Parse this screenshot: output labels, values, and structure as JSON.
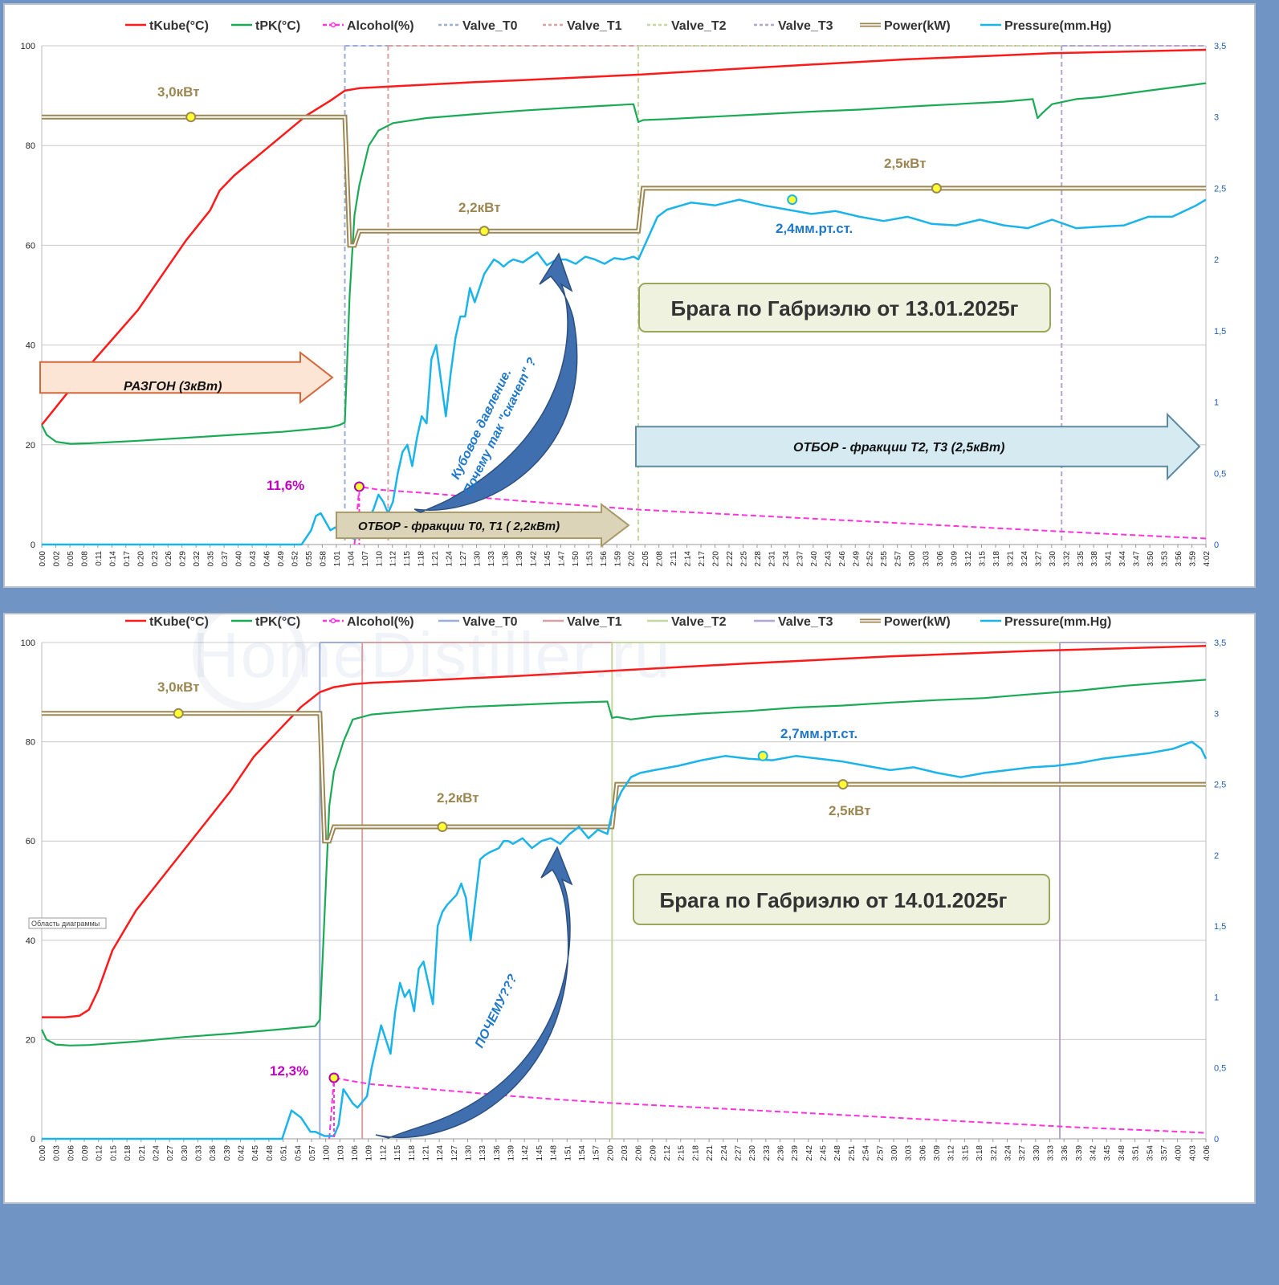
{
  "colors": {
    "tKube": "#ff1a1a",
    "tRK": "#1aaa55",
    "alcohol": "#ff33dd",
    "valve_t0": "#9aaed6",
    "valve_t1": "#d9a0a0",
    "valve_t2": "#c6d6a0",
    "valve_t3": "#b2a6d0",
    "power": "#9c8752",
    "pressure": "#1bb4ea",
    "arrow_blue": "#3f6fae",
    "note_border": "#9aa75a",
    "note_fill": "#eef2de"
  },
  "legend": [
    "tKube(°C)",
    "tPK(°C)",
    "Alcohol(%)",
    "Valve_T0",
    "Valve_T1",
    "Valve_T2",
    "Valve_T3",
    "Power(kW)",
    "Pressure(mm.Hg)"
  ],
  "chart_data": [
    {
      "type": "line",
      "title": "Брага по Габриэлю от 13.01.2025г",
      "ylim_left": [
        0,
        100
      ],
      "ylim_right": [
        0,
        3.5
      ],
      "yticks_left": [
        "0",
        "20",
        "40",
        "60",
        "80",
        "100"
      ],
      "yticks_right": [
        "0",
        "0,5",
        "1",
        "1,5",
        "2",
        "2,5",
        "3",
        "3,5"
      ],
      "x_ticks": [
        "0:00",
        "0:02",
        "0:05",
        "0:08",
        "0:11",
        "0:14",
        "0:17",
        "0:20",
        "0:23",
        "0:26",
        "0:29",
        "0:32",
        "0:35",
        "0:37",
        "0:40",
        "0:43",
        "0:46",
        "0:49",
        "0:52",
        "0:55",
        "0:58",
        "1:01",
        "1:04",
        "1:07",
        "1:10",
        "1:12",
        "1:15",
        "1:18",
        "1:21",
        "1:24",
        "1:27",
        "1:30",
        "1:33",
        "1:36",
        "1:39",
        "1:42",
        "1:45",
        "1:47",
        "1:50",
        "1:53",
        "1:56",
        "1:59",
        "2:02",
        "2:05",
        "2:08",
        "2:11",
        "2:14",
        "2:17",
        "2:20",
        "2:22",
        "2:25",
        "2:28",
        "2:31",
        "2:34",
        "2:37",
        "2:40",
        "2:43",
        "2:46",
        "2:49",
        "2:52",
        "2:55",
        "2:57",
        "3:00",
        "3:03",
        "3:06",
        "3:09",
        "3:12",
        "3:15",
        "3:18",
        "3:21",
        "3:24",
        "3:27",
        "3:30",
        "3:32",
        "3:35",
        "3:38",
        "3:41",
        "3:44",
        "3:47",
        "3:50",
        "3:53",
        "3:56",
        "3:59",
        "4:02"
      ],
      "x_max_min": 242,
      "valve_times_min": {
        "Valve_T0": 63,
        "Valve_T1": 72,
        "Valve_T2": 124,
        "Valve_T3": 212
      },
      "series": [
        {
          "name": "tKube(°C)",
          "axis": "left",
          "x": [
            0,
            5,
            10,
            20,
            30,
            35,
            37,
            40,
            50,
            55,
            60,
            63,
            66,
            70,
            80,
            90,
            100,
            124,
            150,
            180,
            210,
            242
          ],
          "y": [
            24,
            30,
            36,
            47,
            61,
            67,
            71,
            74,
            82,
            86,
            89,
            91,
            91.5,
            91.7,
            92.2,
            92.7,
            93.1,
            94.2,
            95.7,
            97.3,
            98.5,
            99.2
          ]
        },
        {
          "name": "tPK(°C)",
          "axis": "left",
          "x": [
            0,
            1,
            3,
            6,
            10,
            20,
            30,
            40,
            50,
            60,
            62,
            63,
            64,
            65,
            66,
            68,
            70,
            73,
            80,
            90,
            100,
            110,
            123,
            124,
            125,
            130,
            140,
            150,
            160,
            170,
            180,
            190,
            200,
            206,
            207,
            208,
            210,
            215,
            220,
            230,
            242
          ],
          "y": [
            24,
            22,
            20.6,
            20.2,
            20.3,
            20.8,
            21.4,
            22,
            22.6,
            23.5,
            24,
            24.5,
            50,
            66,
            72,
            80,
            83,
            84.5,
            85.5,
            86.3,
            87,
            87.6,
            88.3,
            84.7,
            85.1,
            85.3,
            85.8,
            86.3,
            86.8,
            87.2,
            87.8,
            88.3,
            88.8,
            89.3,
            85.5,
            86.5,
            88.3,
            89.3,
            89.7,
            91,
            92.5
          ]
        },
        {
          "name": "Alcohol(%)",
          "axis": "left",
          "x": [
            65,
            66,
            70,
            80,
            90,
            100,
            110,
            124,
            140,
            160,
            180,
            200,
            220,
            242
          ],
          "y": [
            0,
            11.6,
            11,
            10.3,
            9.5,
            8.7,
            8,
            7,
            6.2,
            5.2,
            4.2,
            3.2,
            2.2,
            1.2
          ]
        },
        {
          "name": "Power(kW)",
          "axis": "right",
          "x": [
            0,
            63,
            64,
            65,
            66,
            124,
            125,
            242
          ],
          "y": [
            3.0,
            3.0,
            2.1,
            2.1,
            2.2,
            2.2,
            2.5,
            2.5
          ]
        },
        {
          "name": "Pressure(mm.Hg)",
          "axis": "right",
          "x": [
            0,
            54,
            56,
            57,
            58,
            60,
            61,
            63,
            64,
            65,
            66,
            67,
            68,
            69,
            70,
            71,
            72,
            73,
            74,
            75,
            76,
            77,
            78,
            79,
            80,
            81,
            82,
            84,
            85,
            86,
            87,
            88,
            89,
            90,
            92,
            93,
            94,
            95,
            96,
            97,
            98,
            100,
            103,
            105,
            107,
            109,
            111,
            113,
            115,
            117,
            119,
            121,
            123,
            124,
            126,
            128,
            130,
            135,
            140,
            145,
            150,
            155,
            160,
            165,
            170,
            175,
            180,
            185,
            190,
            195,
            200,
            205,
            210,
            215,
            220,
            225,
            230,
            235,
            240,
            242
          ],
          "y": [
            0,
            0,
            0.1,
            0.2,
            0.22,
            0.1,
            0.12,
            0.08,
            0.05,
            0.04,
            0.05,
            0.12,
            0.18,
            0.25,
            0.35,
            0.3,
            0.22,
            0.3,
            0.5,
            0.65,
            0.7,
            0.55,
            0.75,
            0.9,
            0.85,
            1.3,
            1.4,
            0.9,
            1.2,
            1.45,
            1.6,
            1.6,
            1.8,
            1.7,
            1.9,
            1.95,
            2.0,
            1.98,
            1.95,
            1.98,
            2.0,
            1.98,
            2.05,
            1.96,
            2.0,
            2.0,
            1.97,
            2.02,
            2.0,
            1.97,
            2.01,
            2.0,
            2.02,
            2.0,
            2.15,
            2.3,
            2.35,
            2.4,
            2.38,
            2.42,
            2.38,
            2.35,
            2.32,
            2.34,
            2.3,
            2.27,
            2.3,
            2.25,
            2.24,
            2.28,
            2.24,
            2.22,
            2.28,
            2.22,
            2.23,
            2.24,
            2.3,
            2.3,
            2.38,
            2.42
          ]
        }
      ],
      "annotations": {
        "power_label_1": "3,0кВт",
        "power_label_2": "2,2кВт",
        "power_label_3": "2,5кВт",
        "pressure_label": "2,4мм.рт.ст.",
        "alcohol_label": "11,6%",
        "arrow_razgon": "РАЗГОН  (3кВт)",
        "arrow_otbor_12": "ОТБОР - фракции Т0, Т1  ( 2,2кВт)",
        "arrow_otbor_23": "ОТБОР - фракции Т2, Т3  (2,5кВт)",
        "curved_note_line1": "Кубовое давление.",
        "curved_note_line2": "Почему так \"скачет\" ?",
        "title_box": "Брага по Габриэлю от 13.01.2025г"
      }
    },
    {
      "type": "line",
      "title": "Брага по Габриэлю от 14.01.2025г",
      "ylim_left": [
        0,
        100
      ],
      "ylim_right": [
        0,
        3.5
      ],
      "yticks_left": [
        "0",
        "20",
        "40",
        "60",
        "80",
        "100"
      ],
      "yticks_right": [
        "0",
        "0,5",
        "1",
        "1,5",
        "2",
        "2,5",
        "3",
        "3,5"
      ],
      "x_ticks": [
        "0:00",
        "0:03",
        "0:06",
        "0:09",
        "0:12",
        "0:15",
        "0:18",
        "0:21",
        "0:24",
        "0:27",
        "0:30",
        "0:33",
        "0:36",
        "0:39",
        "0:42",
        "0:45",
        "0:48",
        "0:51",
        "0:54",
        "0:57",
        "1:00",
        "1:03",
        "1:06",
        "1:09",
        "1:12",
        "1:15",
        "1:18",
        "1:21",
        "1:24",
        "1:27",
        "1:30",
        "1:33",
        "1:36",
        "1:39",
        "1:42",
        "1:45",
        "1:48",
        "1:51",
        "1:54",
        "1:57",
        "2:00",
        "2:03",
        "2:06",
        "2:09",
        "2:12",
        "2:15",
        "2:18",
        "2:21",
        "2:24",
        "2:27",
        "2:30",
        "2:33",
        "2:36",
        "2:39",
        "2:42",
        "2:45",
        "2:48",
        "2:51",
        "2:54",
        "2:57",
        "3:00",
        "3:03",
        "3:06",
        "3:09",
        "3:12",
        "3:15",
        "3:18",
        "3:21",
        "3:24",
        "3:27",
        "3:30",
        "3:33",
        "3:36",
        "3:39",
        "3:42",
        "3:45",
        "3:48",
        "3:51",
        "3:54",
        "3:57",
        "4:00",
        "4:03",
        "4:06"
      ],
      "x_max_min": 247,
      "valve_times_min": {
        "Valve_T0": 59,
        "Valve_T1": 68,
        "Valve_T2": 121,
        "Valve_T3": 216
      },
      "series": [
        {
          "name": "tKube(°C)",
          "axis": "left",
          "x": [
            0,
            5,
            8,
            10,
            12,
            15,
            20,
            25,
            30,
            35,
            40,
            45,
            50,
            55,
            59,
            62,
            66,
            70,
            80,
            100,
            121,
            150,
            180,
            210,
            247
          ],
          "y": [
            24.5,
            24.5,
            24.8,
            26,
            30,
            38,
            46,
            52,
            58,
            64,
            70,
            77,
            82,
            87,
            90,
            91,
            91.6,
            91.9,
            92.3,
            93.2,
            94.3,
            95.8,
            97.2,
            98.3,
            99.3
          ]
        },
        {
          "name": "tPK(°C)",
          "axis": "left",
          "x": [
            0,
            1,
            3,
            6,
            10,
            20,
            30,
            40,
            50,
            58,
            59,
            60,
            61,
            62,
            64,
            66,
            70,
            80,
            90,
            100,
            110,
            120,
            121,
            122,
            125,
            130,
            140,
            150,
            160,
            170,
            180,
            190,
            200,
            210,
            220,
            230,
            240,
            247
          ],
          "y": [
            22,
            20,
            19,
            18.8,
            18.9,
            19.6,
            20.5,
            21.2,
            22,
            22.7,
            24,
            45,
            67,
            74,
            80,
            84.5,
            85.5,
            86.3,
            87,
            87.4,
            87.8,
            88.1,
            84.8,
            85,
            84.5,
            85.1,
            85.7,
            86.2,
            86.9,
            87.3,
            87.9,
            88.4,
            88.8,
            89.6,
            90.3,
            91.3,
            92,
            92.5
          ]
        },
        {
          "name": "Alcohol(%)",
          "axis": "left",
          "x": [
            61,
            62,
            66,
            70,
            80,
            90,
            100,
            110,
            121,
            140,
            160,
            180,
            200,
            220,
            240,
            247
          ],
          "y": [
            0,
            12.3,
            11.6,
            11,
            10.2,
            9.4,
            8.6,
            7.9,
            7.2,
            6.3,
            5.3,
            4.3,
            3.3,
            2.3,
            1.5,
            1.2
          ]
        },
        {
          "name": "Power(kW)",
          "axis": "right",
          "x": [
            0,
            59,
            60,
            61,
            62,
            121,
            122,
            247
          ],
          "y": [
            3.0,
            3.0,
            2.1,
            2.1,
            2.2,
            2.2,
            2.5,
            2.5
          ]
        },
        {
          "name": "Pressure(mm.Hg)",
          "axis": "right",
          "x": [
            0,
            51,
            53,
            55,
            57,
            58,
            60,
            62,
            63,
            64,
            66,
            67,
            69,
            70,
            72,
            74,
            75,
            76,
            77,
            78,
            79,
            80,
            81,
            83,
            84,
            85,
            86,
            88,
            89,
            90,
            91,
            93,
            94,
            95,
            97,
            98,
            99,
            100,
            102,
            104,
            106,
            108,
            110,
            112,
            114,
            116,
            118,
            120,
            121,
            123,
            125,
            127,
            130,
            135,
            140,
            145,
            150,
            155,
            160,
            165,
            170,
            175,
            180,
            185,
            190,
            195,
            200,
            205,
            210,
            215,
            220,
            225,
            230,
            235,
            240,
            244,
            246,
            247
          ],
          "y": [
            0,
            0,
            0.2,
            0.15,
            0.05,
            0.05,
            0.02,
            0.02,
            0.1,
            0.35,
            0.25,
            0.22,
            0.3,
            0.5,
            0.8,
            0.6,
            0.9,
            1.1,
            1.0,
            1.05,
            0.9,
            1.2,
            1.25,
            0.95,
            1.5,
            1.6,
            1.65,
            1.72,
            1.8,
            1.7,
            1.4,
            1.97,
            2.0,
            2.02,
            2.05,
            2.1,
            2.1,
            2.08,
            2.12,
            2.05,
            2.1,
            2.12,
            2.08,
            2.15,
            2.2,
            2.12,
            2.18,
            2.15,
            2.3,
            2.45,
            2.55,
            2.58,
            2.6,
            2.63,
            2.67,
            2.7,
            2.68,
            2.67,
            2.7,
            2.68,
            2.66,
            2.63,
            2.6,
            2.62,
            2.58,
            2.55,
            2.58,
            2.6,
            2.62,
            2.63,
            2.65,
            2.68,
            2.7,
            2.72,
            2.75,
            2.8,
            2.75,
            2.68
          ]
        }
      ],
      "annotations": {
        "power_label_1": "3,0кВт",
        "power_label_2": "2,2кВт",
        "power_label_3": "2,5кВт",
        "pressure_label": "2,7мм.рт.ст.",
        "alcohol_label": "12,3%",
        "curved_note_line1": "ПОЧЕМУ???",
        "title_box": "Брага по Габриэлю от 14.01.2025г",
        "tooltip": "Область диаграммы"
      }
    }
  ],
  "watermark": "HomeDistiller.ru"
}
